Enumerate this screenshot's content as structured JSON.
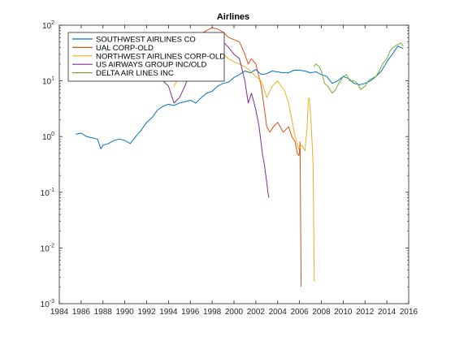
{
  "chart_data": {
    "type": "line",
    "title": "Airlines",
    "xlabel": "",
    "ylabel": "",
    "xlim": [
      1984,
      2016
    ],
    "ylim": [
      0.001,
      100
    ],
    "yscale": "log",
    "grid": false,
    "legend_position": "top-left",
    "x_ticks": [
      "1984",
      "1986",
      "1988",
      "1990",
      "1992",
      "1994",
      "1996",
      "1998",
      "2000",
      "2002",
      "2004",
      "2006",
      "2008",
      "2010",
      "2012",
      "2014",
      "2016"
    ],
    "y_ticks": [
      {
        "value": 0.001,
        "base": "10",
        "exp": "-3"
      },
      {
        "value": 0.01,
        "base": "10",
        "exp": "-2"
      },
      {
        "value": 0.1,
        "base": "10",
        "exp": "-1"
      },
      {
        "value": 1,
        "base": "10",
        "exp": "0"
      },
      {
        "value": 10,
        "base": "10",
        "exp": "1"
      },
      {
        "value": 100,
        "base": "10",
        "exp": "2"
      }
    ],
    "series": [
      {
        "name": "SOUTHWEST AIRLINES CO",
        "color": "#0072BD",
        "x": [
          1985.5,
          1986,
          1986.5,
          1987,
          1987.5,
          1987.8,
          1988,
          1988.5,
          1989,
          1989.5,
          1990,
          1990.5,
          1991,
          1991.5,
          1992,
          1992.5,
          1993,
          1993.5,
          1994,
          1994.5,
          1995,
          1995.5,
          1996,
          1996.5,
          1997,
          1997.5,
          1998,
          1998.5,
          1999,
          1999.5,
          2000,
          2000.5,
          2001,
          2001.5,
          2002,
          2002.5,
          2003,
          2003.5,
          2004,
          2004.5,
          2005,
          2005.5,
          2006,
          2006.5,
          2007,
          2007.5,
          2008,
          2008.5,
          2009,
          2009.5,
          2010,
          2010.5,
          2011,
          2011.5,
          2012,
          2012.5,
          2013,
          2013.5,
          2014,
          2014.5,
          2015,
          2015.5
        ],
        "y": [
          1.1,
          1.15,
          1.0,
          0.95,
          0.9,
          0.6,
          0.7,
          0.75,
          0.85,
          0.9,
          0.85,
          0.75,
          1.0,
          1.3,
          1.8,
          2.2,
          3.0,
          3.5,
          3.8,
          3.6,
          4.0,
          4.2,
          4.5,
          4.0,
          5.0,
          6.0,
          6.5,
          8.0,
          9.0,
          9.5,
          11.5,
          13.0,
          15.0,
          14.0,
          16.0,
          13.0,
          13.5,
          15.0,
          14.5,
          14.0,
          14.0,
          15.5,
          15.5,
          15.0,
          14.0,
          14.5,
          13.0,
          12.0,
          9.0,
          10.0,
          12.0,
          11.0,
          9.0,
          8.5,
          9.0,
          10.0,
          12.0,
          15.0,
          22.0,
          30.0,
          42.0,
          38.0
        ]
      },
      {
        "name": "UAL CORP-OLD",
        "color": "#D95319",
        "x": [
          1985.7,
          1986,
          1986.5,
          1987,
          1987.5,
          1988,
          1988.5,
          1989,
          1989.5,
          1990,
          1990.5,
          1991,
          1991.5,
          1992,
          1992.5,
          1993,
          1993.5,
          1994,
          1994.5,
          1995,
          1995.5,
          1996,
          1996.5,
          1997,
          1997.5,
          1998,
          1998.5,
          1999,
          1999.5,
          2000,
          2000.5,
          2001,
          2001.3,
          2001.6,
          2002,
          2002.5,
          2002.8,
          2003,
          2003.3,
          2003.6,
          2004,
          2004.5,
          2005,
          2005.3,
          2005.6,
          2005.8,
          2005.95,
          2006.05,
          2006.15
        ],
        "y": [
          12,
          14,
          15,
          16,
          18,
          20,
          25,
          32,
          35,
          30,
          20,
          25,
          28,
          30,
          22,
          20,
          25,
          22,
          20,
          35,
          45,
          55,
          60,
          70,
          80,
          90,
          85,
          75,
          60,
          55,
          50,
          30,
          20,
          25,
          20,
          8,
          3,
          1.5,
          1.2,
          1.5,
          1.8,
          1.2,
          1.5,
          1.0,
          0.8,
          0.5,
          0.45,
          0.8,
          0.002
        ]
      },
      {
        "name": "NORTHWEST AIRLINES CORP-OLD",
        "color": "#EDB120",
        "x": [
          1994.5,
          1995,
          1995.5,
          1996,
          1996.5,
          1997,
          1997.5,
          1998,
          1998.5,
          1999,
          1999.5,
          2000,
          2000.5,
          2001,
          2001.5,
          2002,
          2002.5,
          2003,
          2003.5,
          2004,
          2004.3,
          2004.6,
          2005,
          2005.3,
          2005.6,
          2005.9,
          2006.2,
          2006.5,
          2006.7,
          2006.8,
          2006.9,
          2007.05,
          2007.15,
          2007.25,
          2007.35
        ],
        "y": [
          8,
          12,
          18,
          25,
          30,
          35,
          45,
          50,
          40,
          30,
          25,
          22,
          20,
          18,
          15,
          12,
          10,
          5,
          8,
          10,
          8,
          7,
          4,
          2,
          1,
          0.6,
          0.7,
          0.55,
          1.5,
          4.5,
          5.0,
          2.0,
          0.8,
          0.3,
          0.0025
        ]
      },
      {
        "name": "US AIRWAYS GROUP INC/OLD",
        "color": "#7E2F8E",
        "x": [
          1992,
          1992.5,
          1993,
          1993.5,
          1994,
          1994.5,
          1995,
          1995.5,
          1996,
          1996.5,
          1997,
          1997.5,
          1998,
          1998.5,
          1999,
          1999.5,
          2000,
          2000.5,
          2001,
          2001.3,
          2001.6,
          2002,
          2002.3,
          2002.6,
          2002.8,
          2003,
          2003.1,
          2003.2
        ],
        "y": [
          15,
          13,
          12,
          10,
          8,
          4,
          5,
          8,
          15,
          22,
          35,
          55,
          65,
          60,
          50,
          40,
          30,
          25,
          10,
          4,
          6,
          3,
          1.5,
          0.5,
          0.3,
          0.15,
          0.1,
          0.08
        ]
      },
      {
        "name": "DELTA AIR LINES INC",
        "color": "#77AC30",
        "x": [
          2007.3,
          2007.5,
          2007.8,
          2008,
          2008.3,
          2008.6,
          2009,
          2009.3,
          2009.6,
          2010,
          2010.3,
          2010.6,
          2011,
          2011.3,
          2011.6,
          2012,
          2012.3,
          2012.6,
          2013,
          2013.3,
          2013.6,
          2014,
          2014.3,
          2014.6,
          2015,
          2015.3,
          2015.5
        ],
        "y": [
          18,
          20,
          18,
          15,
          9,
          8,
          6,
          7,
          9,
          12,
          13,
          10,
          10,
          9,
          7,
          8,
          10,
          11,
          12,
          15,
          20,
          25,
          35,
          40,
          45,
          48,
          42
        ]
      }
    ]
  }
}
